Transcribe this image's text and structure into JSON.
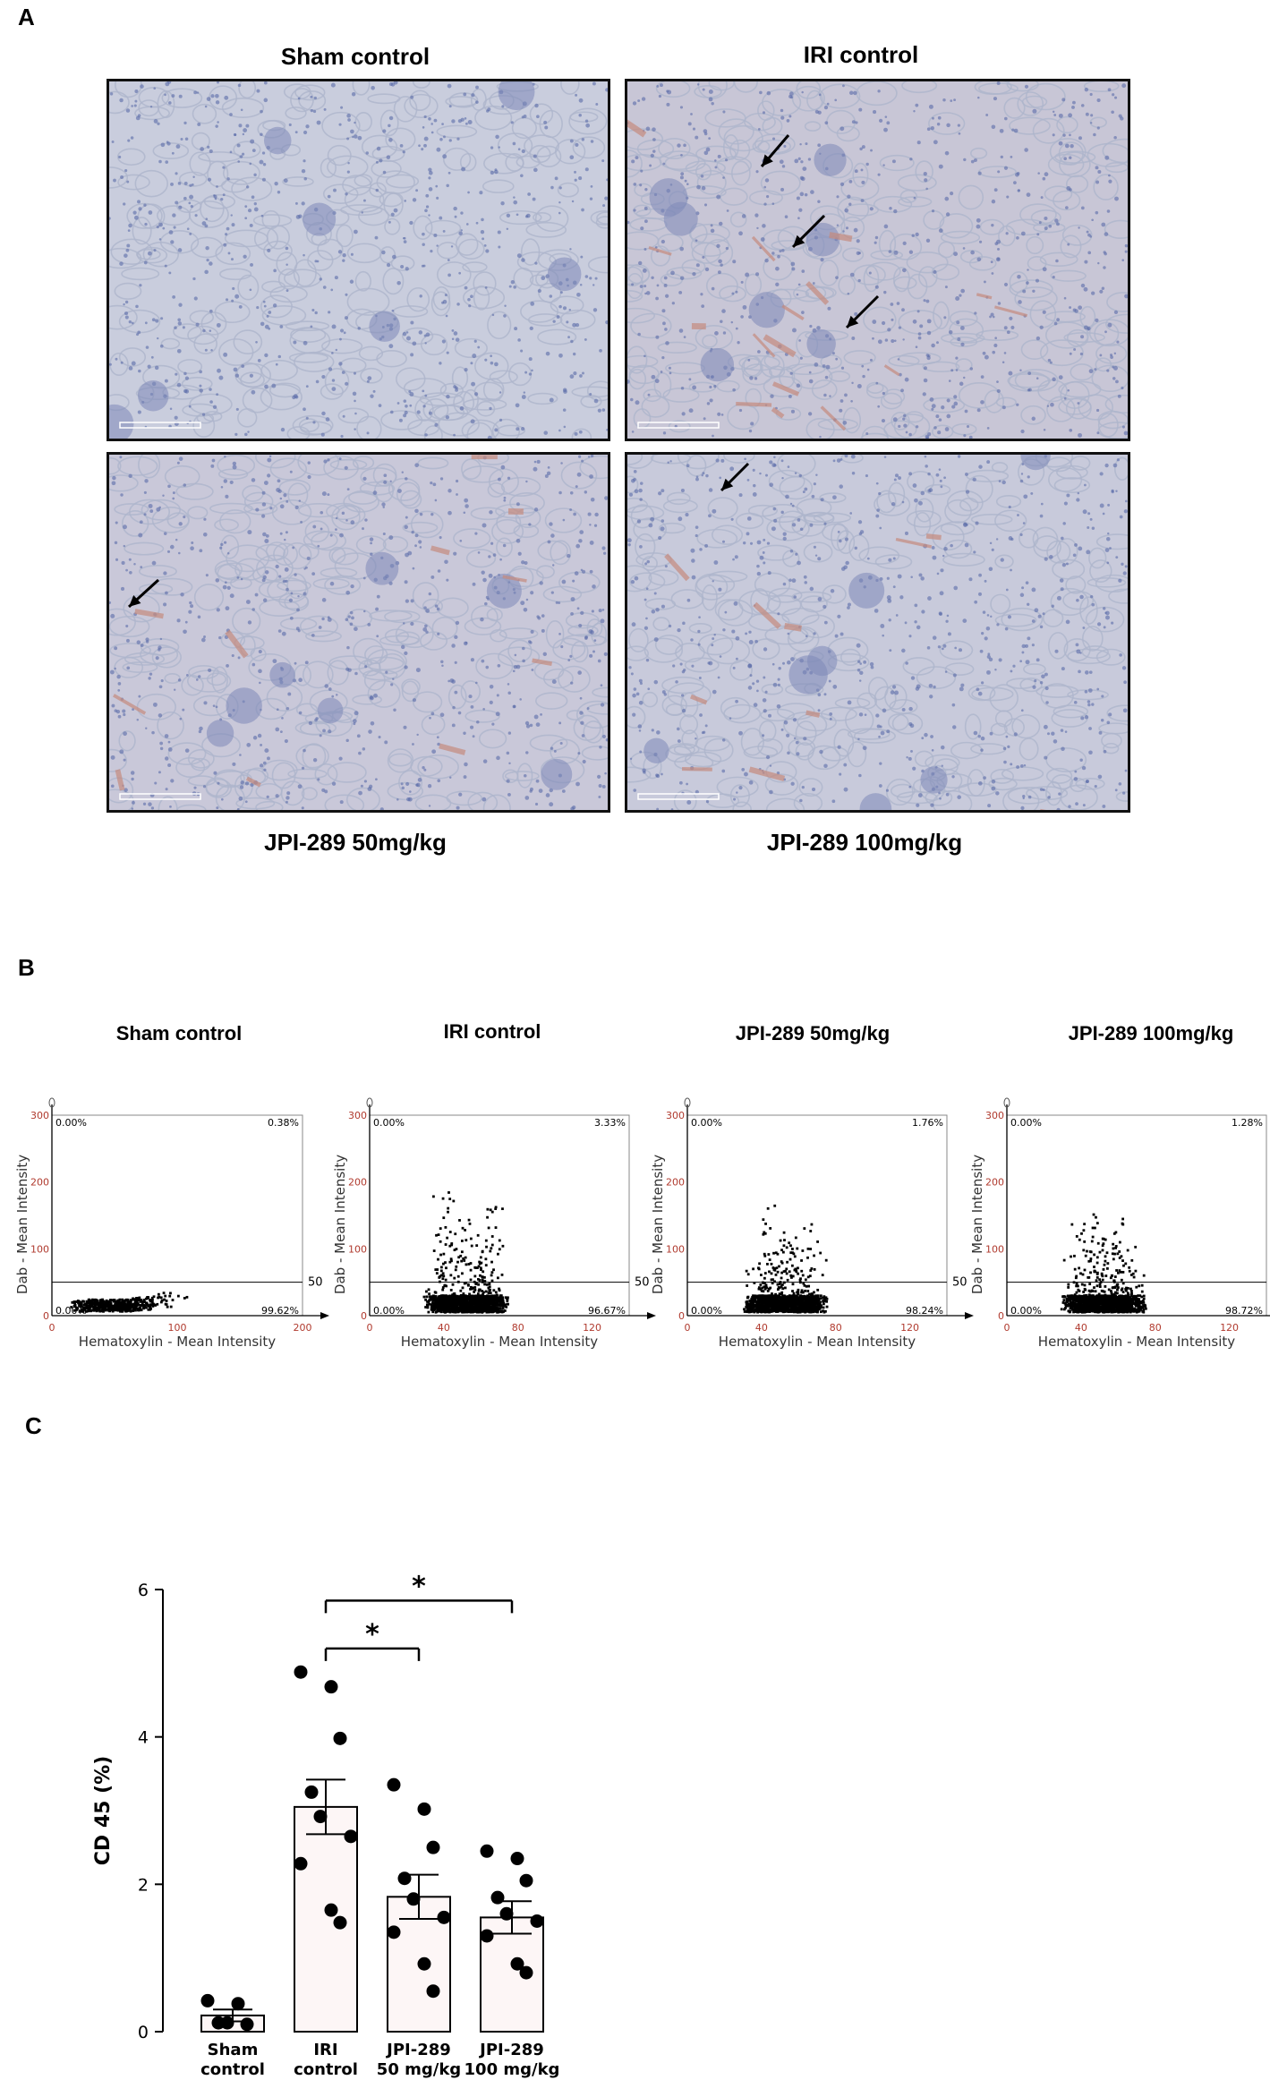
{
  "panelA": {
    "letter": "A",
    "images": [
      {
        "caption": "Sham control",
        "tissue_tint": "#c9cddd",
        "brown_stain": false,
        "arrows": 0
      },
      {
        "caption": "IRI control",
        "tissue_tint": "#c8c6d6",
        "brown_stain": true,
        "arrows": 3
      },
      {
        "caption": "JPI-289 50mg/kg",
        "tissue_tint": "#c9c8d9",
        "brown_stain": true,
        "arrows": 1
      },
      {
        "caption": "JPI-289 100mg/kg",
        "tissue_tint": "#c8cadb",
        "brown_stain": true,
        "arrows": 1
      }
    ]
  },
  "panelB": {
    "letter": "B",
    "plots": [
      {
        "title": "Sham control",
        "xmax": 200,
        "xticks": [
          "0",
          "100",
          "200"
        ],
        "q_tl": "0.00%",
        "q_tr": "0.38%",
        "q_bl": "0.00%",
        "q_br": "99.62%"
      },
      {
        "title": "IRI control",
        "xmax": 140,
        "xticks": [
          "0",
          "40",
          "80",
          "120"
        ],
        "q_tl": "0.00%",
        "q_tr": "3.33%",
        "q_bl": "0.00%",
        "q_br": "96.67%"
      },
      {
        "title": "JPI-289 50mg/kg",
        "xmax": 140,
        "xticks": [
          "0",
          "40",
          "80",
          "120"
        ],
        "q_tl": "0.00%",
        "q_tr": "1.76%",
        "q_bl": "0.00%",
        "q_br": "98.24%"
      },
      {
        "title": "JPI-289 100mg/kg",
        "xmax": 140,
        "xticks": [
          "0",
          "40",
          "80",
          "120"
        ],
        "q_tl": "0.00%",
        "q_tr": "1.28%",
        "q_bl": "0.00%",
        "q_br": "98.72%"
      }
    ],
    "ylabel": "Dab - Mean Intensity",
    "xlabel": "Hematoxylin - Mean Intensity",
    "yticks": [
      "0",
      "100",
      "200",
      "300"
    ],
    "threshold_label": "50"
  },
  "panelC": {
    "letter": "C",
    "significance": [
      "*",
      "*"
    ]
  },
  "chart_data": {
    "type": "bar",
    "title": "",
    "ylabel": "CD 45 (%)",
    "xlabel": "",
    "ylim": [
      0,
      6
    ],
    "yticks": [
      "0",
      "2",
      "4",
      "6"
    ],
    "categories": [
      [
        "Sham",
        "control"
      ],
      [
        "IRI",
        "control"
      ],
      [
        "JPI-289",
        "50 mg/kg"
      ],
      [
        "JPI-289",
        "100 mg/kg"
      ]
    ],
    "values": [
      0.22,
      3.05,
      1.83,
      1.55
    ],
    "errors": [
      0.08,
      0.37,
      0.3,
      0.22
    ],
    "points": [
      [
        0.42,
        0.38,
        0.1,
        0.12,
        0.12
      ],
      [
        4.88,
        4.68,
        3.98,
        3.25,
        2.92,
        2.65,
        2.28,
        1.65,
        1.48
      ],
      [
        3.35,
        3.02,
        2.5,
        2.08,
        1.8,
        1.55,
        1.35,
        0.92,
        0.55
      ],
      [
        2.45,
        2.35,
        2.05,
        1.82,
        1.6,
        1.5,
        1.3,
        0.92,
        0.8
      ]
    ],
    "significance": [
      {
        "from": 1,
        "to": 2,
        "label": "*"
      },
      {
        "from": 1,
        "to": 3,
        "label": "*"
      }
    ]
  }
}
